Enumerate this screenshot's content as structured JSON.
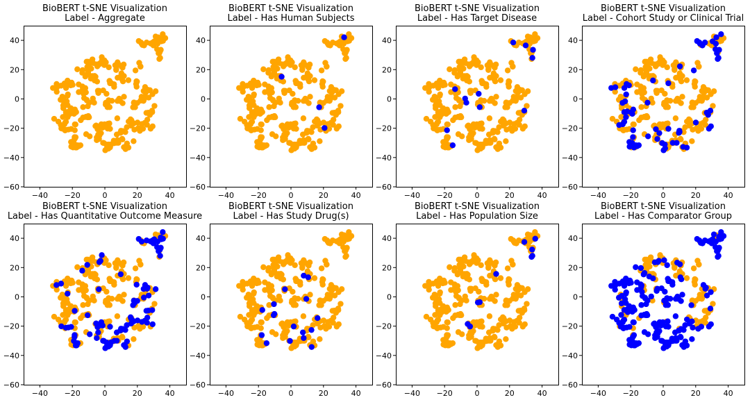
{
  "chart_data": [
    {
      "type": "scatter",
      "title": "BioBERT t-SNE Visualization",
      "subtitle": "Label - Aggregate",
      "xlim": [
        -50,
        50
      ],
      "ylim": [
        -60,
        50
      ],
      "xticks": [
        -40,
        -20,
        0,
        20,
        40
      ],
      "yticks": [
        -60,
        -40,
        -20,
        0,
        20,
        40
      ],
      "positive_fraction": 0.0,
      "positive_regions": []
    },
    {
      "type": "scatter",
      "title": "BioBERT t-SNE Visualization",
      "subtitle": "Label - Has Human Subjects",
      "xlim": [
        -50,
        50
      ],
      "ylim": [
        -60,
        50
      ],
      "xticks": [
        -40,
        -20,
        0,
        20,
        40
      ],
      "yticks": [
        -60,
        -40,
        -20,
        0,
        20,
        40
      ],
      "positive_fraction": 0.02,
      "positive_regions": [
        "top-right"
      ]
    },
    {
      "type": "scatter",
      "title": "BioBERT t-SNE Visualization",
      "subtitle": "Label - Has Target Disease",
      "xlim": [
        -50,
        50
      ],
      "ylim": [
        -60,
        50
      ],
      "xticks": [
        -40,
        -20,
        0,
        20,
        40
      ],
      "yticks": [
        -60,
        -40,
        -20,
        0,
        20,
        40
      ],
      "positive_fraction": 0.04,
      "positive_regions": [
        "top-right",
        "center"
      ]
    },
    {
      "type": "scatter",
      "title": "BioBERT t-SNE Visualization",
      "subtitle": "Label - Cohort Study or Clinical Trial",
      "xlim": [
        -50,
        50
      ],
      "ylim": [
        -60,
        50
      ],
      "xticks": [
        -40,
        -20,
        0,
        20,
        40
      ],
      "yticks": [
        -60,
        -40,
        -20,
        0,
        20,
        40
      ],
      "positive_fraction": 0.12,
      "positive_regions": [
        "top-right",
        "left",
        "bottom"
      ]
    },
    {
      "type": "scatter",
      "title": "BioBERT t-SNE Visualization",
      "subtitle": "Label - Has Quantitative Outcome Measure",
      "xlim": [
        -50,
        50
      ],
      "ylim": [
        -60,
        50
      ],
      "xticks": [
        -40,
        -20,
        0,
        20,
        40
      ],
      "yticks": [
        -60,
        -40,
        -20,
        0,
        20,
        40
      ],
      "positive_fraction": 0.18,
      "positive_regions": [
        "top-right",
        "right",
        "bottom"
      ]
    },
    {
      "type": "scatter",
      "title": "BioBERT t-SNE Visualization",
      "subtitle": "Label - Has Study Drug(s)",
      "xlim": [
        -50,
        50
      ],
      "ylim": [
        -60,
        50
      ],
      "xticks": [
        -40,
        -20,
        0,
        20,
        40
      ],
      "yticks": [
        -60,
        -40,
        -20,
        0,
        20,
        40
      ],
      "positive_fraction": 0.04,
      "positive_regions": [
        "bottom",
        "center"
      ]
    },
    {
      "type": "scatter",
      "title": "BioBERT t-SNE Visualization",
      "subtitle": "Label - Has Population Size",
      "xlim": [
        -50,
        50
      ],
      "ylim": [
        -60,
        50
      ],
      "xticks": [
        -40,
        -20,
        0,
        20,
        40
      ],
      "yticks": [
        -60,
        -40,
        -20,
        0,
        20,
        40
      ],
      "positive_fraction": 0.05,
      "positive_regions": [
        "top-right"
      ]
    },
    {
      "type": "scatter",
      "title": "BioBERT t-SNE Visualization",
      "subtitle": "Label - Has Comparator Group",
      "xlim": [
        -50,
        50
      ],
      "ylim": [
        -60,
        50
      ],
      "xticks": [
        -40,
        -20,
        0,
        20,
        40
      ],
      "yticks": [
        -60,
        -40,
        -20,
        0,
        20,
        40
      ],
      "positive_fraction": 0.45,
      "positive_regions": [
        "top-right",
        "left",
        "bottom",
        "center"
      ]
    }
  ],
  "colors": {
    "negative": "#ffa500",
    "positive": "#0000ff"
  }
}
